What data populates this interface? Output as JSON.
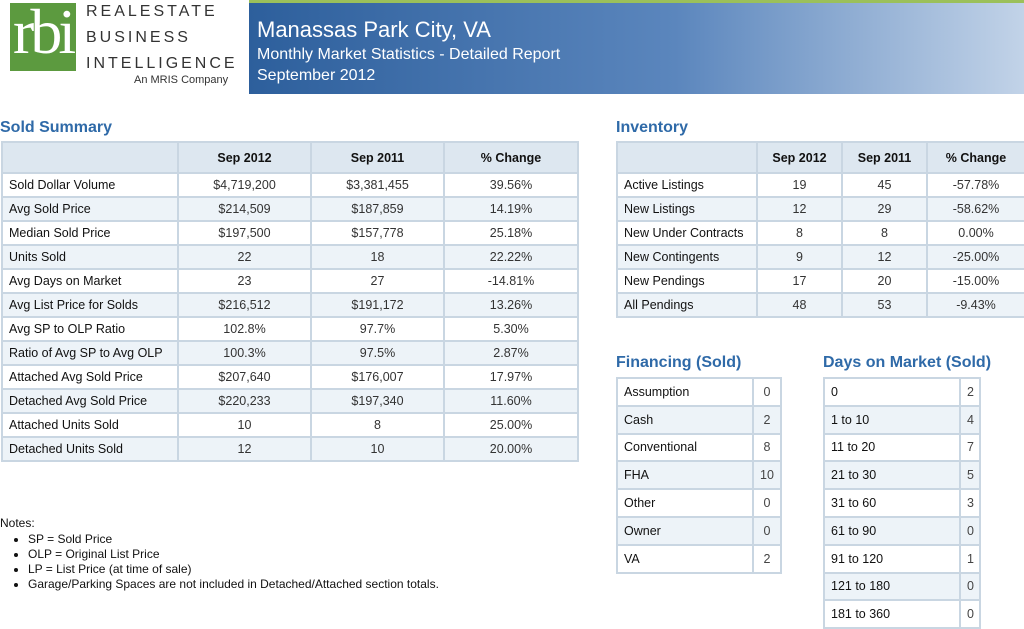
{
  "header": {
    "logo_text": "rbi",
    "brand_line1": "REALESTATE",
    "brand_line2": "BUSINESS",
    "brand_line3": "INTELLIGENCE",
    "brand_sub": "An MRIS Company",
    "title": "Manassas Park City, VA",
    "subtitle": "Monthly Market Statistics - Detailed Report",
    "date": "September 2012"
  },
  "sold_summary": {
    "title": "Sold Summary",
    "columns": [
      "",
      "Sep 2012",
      "Sep 2011",
      "% Change"
    ],
    "rows": [
      [
        "Sold Dollar Volume",
        "$4,719,200",
        "$3,381,455",
        "39.56%"
      ],
      [
        "Avg Sold Price",
        "$214,509",
        "$187,859",
        "14.19%"
      ],
      [
        "Median Sold Price",
        "$197,500",
        "$157,778",
        "25.18%"
      ],
      [
        "Units Sold",
        "22",
        "18",
        "22.22%"
      ],
      [
        "Avg Days on Market",
        "23",
        "27",
        "-14.81%"
      ],
      [
        "Avg List Price for Solds",
        "$216,512",
        "$191,172",
        "13.26%"
      ],
      [
        "Avg SP to OLP Ratio",
        "102.8%",
        "97.7%",
        "5.30%"
      ],
      [
        "Ratio of Avg SP to Avg OLP",
        "100.3%",
        "97.5%",
        "2.87%"
      ],
      [
        "Attached Avg Sold Price",
        "$207,640",
        "$176,007",
        "17.97%"
      ],
      [
        "Detached Avg Sold Price",
        "$220,233",
        "$197,340",
        "11.60%"
      ],
      [
        "Attached Units Sold",
        "10",
        "8",
        "25.00%"
      ],
      [
        "Detached Units Sold",
        "12",
        "10",
        "20.00%"
      ]
    ]
  },
  "inventory": {
    "title": "Inventory",
    "columns": [
      "",
      "Sep 2012",
      "Sep 2011",
      "% Change"
    ],
    "rows": [
      [
        "Active Listings",
        "19",
        "45",
        "-57.78%"
      ],
      [
        "New Listings",
        "12",
        "29",
        "-58.62%"
      ],
      [
        "New Under Contracts",
        "8",
        "8",
        "0.00%"
      ],
      [
        "New Contingents",
        "9",
        "12",
        "-25.00%"
      ],
      [
        "New Pendings",
        "17",
        "20",
        "-15.00%"
      ],
      [
        "All Pendings",
        "48",
        "53",
        "-9.43%"
      ]
    ]
  },
  "financing": {
    "title": "Financing (Sold)",
    "rows": [
      [
        "Assumption",
        "0"
      ],
      [
        "Cash",
        "2"
      ],
      [
        "Conventional",
        "8"
      ],
      [
        "FHA",
        "10"
      ],
      [
        "Other",
        "0"
      ],
      [
        "Owner",
        "0"
      ],
      [
        "VA",
        "2"
      ]
    ]
  },
  "days_on_market": {
    "title": "Days on Market (Sold)",
    "rows": [
      [
        "0",
        "2"
      ],
      [
        "1 to 10",
        "4"
      ],
      [
        "11 to 20",
        "7"
      ],
      [
        "21 to 30",
        "5"
      ],
      [
        "31 to 60",
        "3"
      ],
      [
        "61 to 90",
        "0"
      ],
      [
        "91 to 120",
        "1"
      ],
      [
        "121 to 180",
        "0"
      ],
      [
        "181 to 360",
        "0"
      ]
    ]
  },
  "notes": {
    "title": "Notes:",
    "items": [
      "SP = Sold Price",
      "OLP = Original List Price",
      "LP = List Price (at time of sale)",
      "Garage/Parking Spaces are not included in Detached/Attached section totals."
    ]
  }
}
